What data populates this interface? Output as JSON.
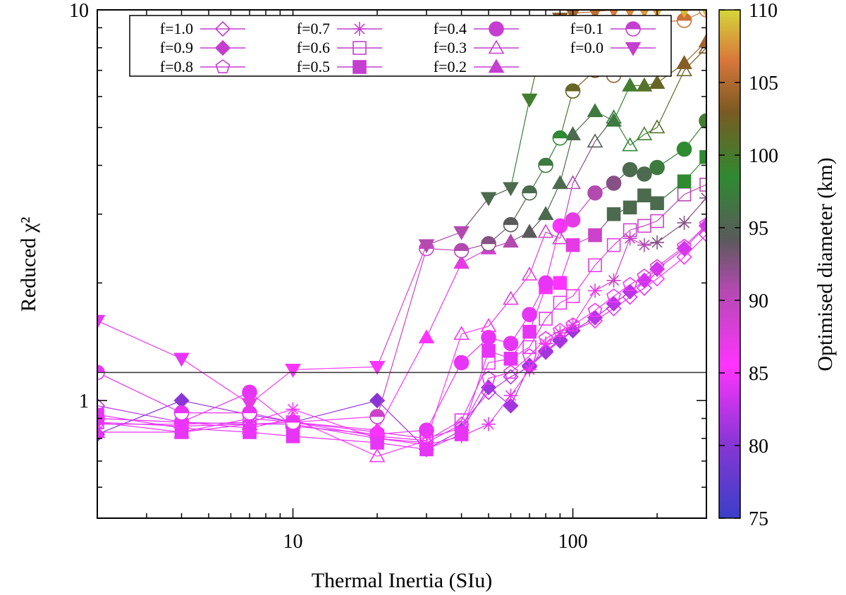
{
  "chart_data": {
    "type": "line",
    "xlabel": "Thermal Inertia (SIu)",
    "ylabel": "Reduced χ²",
    "xscale": "log",
    "yscale": "log",
    "xlim": [
      2,
      300
    ],
    "ylim": [
      0.5,
      10
    ],
    "x_ticks": [
      10,
      100
    ],
    "x_tick_labels": [
      "10",
      "100"
    ],
    "y_ticks": [
      1,
      10
    ],
    "y_tick_labels": [
      "1",
      "10"
    ],
    "reference_line": 1.18,
    "grid": false,
    "legend_position": "top",
    "colorbar": {
      "label": "Optimised diameter (km)",
      "min": 75,
      "max": 110,
      "ticks": [
        75,
        80,
        85,
        90,
        95,
        100,
        105,
        110
      ],
      "tick_labels": [
        "75",
        "80",
        "85",
        "90",
        "95",
        "100",
        "105",
        "110"
      ]
    },
    "x": [
      2,
      4,
      7,
      10,
      20,
      30,
      40,
      50,
      60,
      70,
      80,
      90,
      100,
      120,
      140,
      160,
      180,
      200,
      250,
      300
    ],
    "series": [
      {
        "name": "f=1.0",
        "marker": "diamond-open",
        "values": [
          0.97,
          0.88,
          0.87,
          0.87,
          0.8,
          0.78,
          0.87,
          1.05,
          1.15,
          1.22,
          1.33,
          1.42,
          1.51,
          1.6,
          1.72,
          1.84,
          1.94,
          2.05,
          2.33,
          2.66
        ],
        "diameters": [
          82,
          82,
          83,
          83,
          84,
          84,
          84,
          83,
          82,
          82,
          82,
          83,
          83,
          84,
          84,
          84,
          84,
          85,
          85,
          86
        ]
      },
      {
        "name": "f=0.9",
        "marker": "diamond",
        "values": [
          0.82,
          1.0,
          0.92,
          0.88,
          1.0,
          0.75,
          0.84,
          1.08,
          0.97,
          1.23,
          1.34,
          1.43,
          1.51,
          1.63,
          1.77,
          1.9,
          2.03,
          2.17,
          2.45,
          2.8
        ],
        "diameters": [
          80,
          80,
          81,
          81,
          80,
          81,
          81,
          81,
          81,
          81,
          81,
          81,
          81,
          82,
          82,
          82,
          83,
          83,
          83,
          83
        ]
      },
      {
        "name": "f=0.8",
        "marker": "pentagon-open",
        "values": [
          0.88,
          0.86,
          0.87,
          0.88,
          0.83,
          0.8,
          0.85,
          1.14,
          1.18,
          1.3,
          1.44,
          1.51,
          1.56,
          1.7,
          1.85,
          1.98,
          2.08,
          2.2,
          2.48,
          2.82
        ],
        "diameters": [
          84,
          84,
          84,
          84,
          84,
          84,
          84,
          84,
          84,
          84,
          84,
          85,
          85,
          85,
          85,
          85,
          86,
          86,
          86,
          86
        ]
      },
      {
        "name": "f=0.7",
        "marker": "star",
        "values": [
          0.87,
          0.87,
          0.88,
          0.95,
          0.8,
          0.77,
          0.81,
          0.87,
          1.03,
          1.2,
          1.4,
          1.49,
          1.56,
          1.91,
          2.03,
          2.6,
          2.5,
          2.54,
          2.85,
          3.3
        ],
        "diameters": [
          84,
          84,
          84,
          85,
          85,
          84,
          84,
          84,
          84,
          85,
          85,
          86,
          86,
          86,
          87,
          87,
          88,
          89,
          89,
          89
        ]
      },
      {
        "name": "f=0.6",
        "marker": "square-open",
        "values": [
          0.88,
          0.83,
          0.9,
          0.88,
          0.81,
          0.79,
          0.89,
          1.25,
          1.28,
          1.37,
          1.62,
          1.78,
          1.85,
          2.22,
          2.5,
          2.73,
          2.8,
          2.88,
          3.37,
          3.57
        ],
        "diameters": [
          84,
          84,
          84,
          84,
          84,
          84,
          84,
          84,
          84,
          84,
          84,
          84,
          85,
          86,
          86,
          87,
          87,
          87,
          88,
          88
        ]
      },
      {
        "name": "f=0.5",
        "marker": "square",
        "values": [
          0.92,
          0.85,
          0.83,
          0.81,
          0.78,
          0.75,
          0.82,
          1.34,
          1.28,
          1.5,
          1.95,
          2.0,
          2.5,
          2.65,
          3.0,
          3.12,
          3.35,
          3.2,
          3.64,
          4.2
        ],
        "diameters": [
          84,
          84,
          84,
          84,
          84,
          84,
          84,
          84,
          84,
          84,
          85,
          85,
          86,
          87,
          91,
          91,
          91,
          91,
          93,
          93
        ]
      },
      {
        "name": "f=0.4",
        "marker": "circle",
        "values": [
          0.9,
          0.88,
          1.05,
          0.86,
          0.82,
          0.84,
          1.25,
          1.45,
          1.4,
          1.66,
          2.0,
          2.8,
          2.9,
          3.4,
          3.6,
          3.9,
          3.8,
          3.95,
          4.4,
          5.2
        ],
        "diameters": [
          84,
          84,
          84,
          84,
          84,
          84,
          84,
          84,
          84,
          84,
          84,
          85,
          86,
          88,
          89,
          91,
          91,
          92,
          93,
          94
        ]
      },
      {
        "name": "f=0.3",
        "marker": "triangle-open",
        "values": [
          0.9,
          0.88,
          0.85,
          0.9,
          0.72,
          0.79,
          1.48,
          1.55,
          1.82,
          2.1,
          2.7,
          2.6,
          3.6,
          4.6,
          5.3,
          4.5,
          4.8,
          5.0,
          7.0,
          8.0
        ],
        "diameters": [
          84,
          85,
          85,
          85,
          85,
          85,
          85,
          85,
          86,
          86,
          87,
          87,
          88,
          90,
          92,
          93,
          94,
          95,
          96,
          97
        ]
      },
      {
        "name": "f=0.2",
        "marker": "triangle",
        "values": [
          0.83,
          0.83,
          0.87,
          0.88,
          0.84,
          1.45,
          2.25,
          2.45,
          2.55,
          2.7,
          3.0,
          3.6,
          4.8,
          5.5,
          5.2,
          6.4,
          6.4,
          6.5,
          7.3,
          8.3
        ],
        "diameters": [
          84,
          84,
          84,
          84,
          85,
          85,
          86,
          87,
          88,
          90,
          91,
          91,
          91,
          92,
          92,
          94,
          95,
          96,
          98,
          100
        ]
      },
      {
        "name": "f=0.1",
        "marker": "circle-half",
        "values": [
          1.18,
          0.93,
          0.93,
          0.88,
          0.91,
          2.45,
          2.42,
          2.52,
          2.82,
          3.4,
          4.0,
          4.7,
          6.2,
          7.0,
          6.8,
          8.5,
          9.0,
          9.3,
          9.4,
          10.0
        ],
        "diameters": [
          84,
          84,
          84,
          84,
          87,
          87,
          88,
          89,
          90,
          91,
          92,
          93,
          96,
          98,
          99,
          100,
          101,
          102,
          103,
          104
        ]
      },
      {
        "name": "f=0.0",
        "marker": "triangle-down",
        "values": [
          1.6,
          1.28,
          0.98,
          1.2,
          1.22,
          2.5,
          2.7,
          3.3,
          3.5,
          5.9,
          9.0,
          9.5,
          9.8,
          9.9,
          10.0,
          10.0,
          10.0,
          10.0,
          10.0,
          10.0
        ],
        "diameters": [
          84,
          84,
          86,
          85,
          85,
          88,
          88,
          91,
          91,
          94,
          96,
          98,
          100,
          102,
          104,
          105,
          106,
          107,
          108,
          108
        ]
      }
    ]
  }
}
